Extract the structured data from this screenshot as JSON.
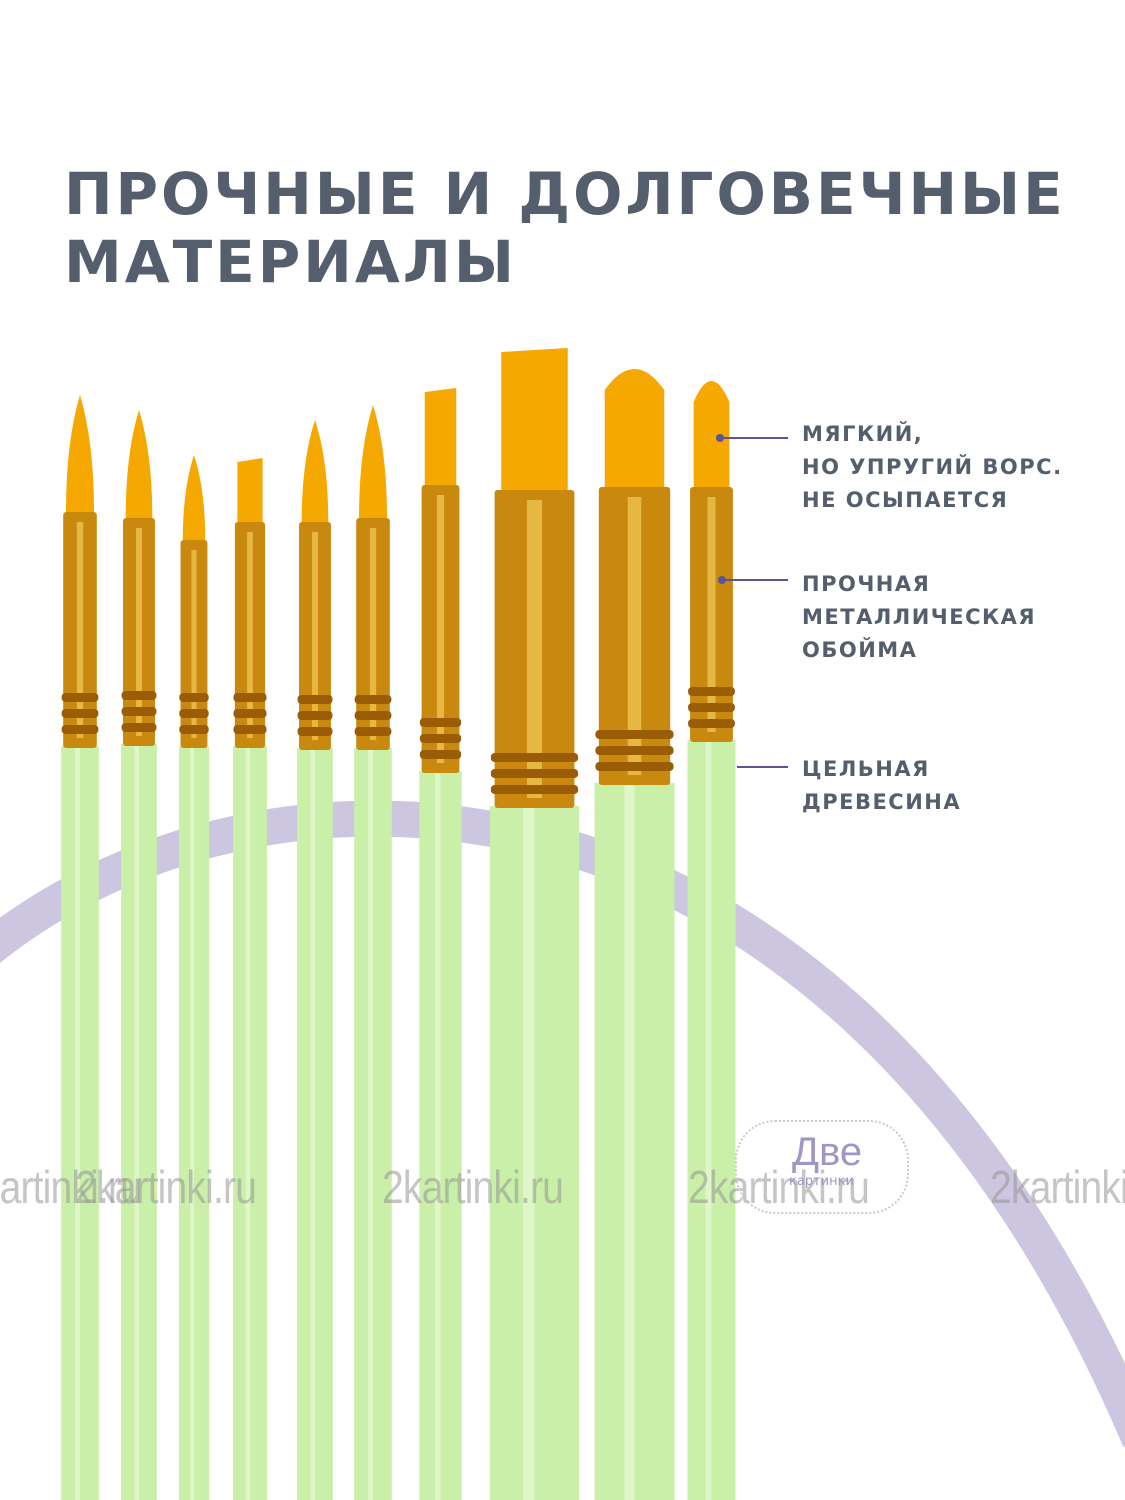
{
  "headline": {
    "line1": "ПРОЧНЫЕ И ДОЛГОВЕЧНЫЕ",
    "line2": "МАТЕРИАЛЫ"
  },
  "callouts": [
    {
      "lines": [
        "МЯГКИЙ,",
        "НО УПРУГИЙ ВОРС.",
        "НЕ ОСЫПАЕТСЯ"
      ]
    },
    {
      "lines": [
        "ПРОЧНАЯ",
        "МЕТАЛЛИЧЕСКАЯ",
        "ОБОЙМА"
      ]
    },
    {
      "lines": [
        "ЦЕЛЬНАЯ",
        "ДРЕВЕСИНА"
      ]
    }
  ],
  "brush_logo": "Две картинки",
  "watermark": {
    "text": "2kartinki.ru",
    "badge_big": "Две",
    "badge_small": "картинки"
  },
  "colors": {
    "text": "#555e6c",
    "bristles": "#f5a800",
    "ferrule": "#c9880e",
    "handle": "#c9efa8",
    "arc": "#cdc6e0",
    "leader": "#5c5496"
  }
}
